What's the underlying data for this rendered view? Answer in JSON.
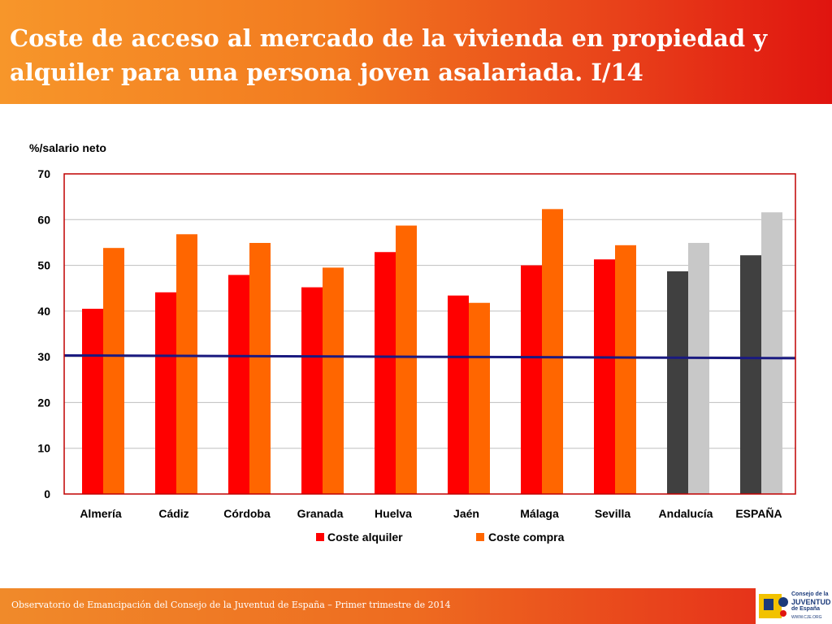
{
  "header": {
    "title_line1": "Coste de acceso al mercado de la vivienda en propiedad y",
    "title_line2": "alquiler para una persona joven asalariada. I/14"
  },
  "footer": {
    "text": "Observatorio de Emancipación del Consejo de la Juventud de España – Primer trimestre de 2014",
    "logo_line1": "Consejo de la",
    "logo_line2": "JUVENTUD",
    "logo_line3": "de España",
    "logo_url": "WWW.CJE.ORG"
  },
  "chart_data": {
    "type": "bar",
    "ylabel": "%/salario neto",
    "ylim": [
      0,
      70
    ],
    "yticks": [
      0,
      10,
      20,
      30,
      40,
      50,
      60,
      70
    ],
    "categories": [
      "Almería",
      "Cádiz",
      "Córdoba",
      "Granada",
      "Huelva",
      "Jaén",
      "Málaga",
      "Sevilla",
      "Andalucía",
      "ESPAÑA"
    ],
    "series": [
      {
        "name": "Coste alquiler",
        "values": [
          40.5,
          44.1,
          47.9,
          45.2,
          52.9,
          43.4,
          50.0,
          51.3,
          48.7,
          52.2
        ]
      },
      {
        "name": "Coste compra",
        "values": [
          53.8,
          56.8,
          54.9,
          49.5,
          58.7,
          41.8,
          62.3,
          54.4,
          54.9,
          61.6
        ]
      }
    ],
    "reference_line": {
      "start": 30.3,
      "end": 29.7
    },
    "colors": {
      "alquiler": "#ff0000",
      "compra": "#ff6600",
      "aggregate_alquiler": "#404040",
      "aggregate_compra": "#c8c8c8",
      "reference_line": "#1a1a80",
      "frame": "#c00000"
    },
    "aggregate_categories": [
      "Andalucía",
      "ESPAÑA"
    ],
    "legend_position": "bottom",
    "grid": true
  }
}
